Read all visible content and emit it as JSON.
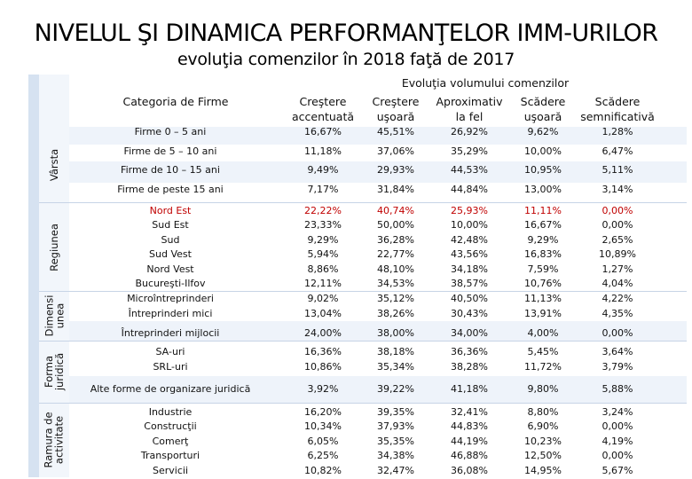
{
  "title": "NIVELUL ŞI DINAMICA PERFORMANŢELOR IMM-URILOR",
  "subtitle": "evoluţia comenzilor în 2018 faţă de 2017",
  "header": {
    "category_label": "Categoria de Firme",
    "group_label": "Evoluţia volumului comenzilor",
    "columns": [
      "Creştere\naccentuată",
      "Creştere\nuşoară",
      "Aproximativ\nla fel",
      "Scădere\nuşoară",
      "Scădere\nsemnificativă"
    ]
  },
  "groups": {
    "varsta": "Vârsta",
    "regiunea": "Regiunea",
    "dimensiunea": "Dimensi\nunea",
    "forma": "Forma\njuridică",
    "ramura": "Ramura de\nactivitate"
  },
  "rows": [
    {
      "label": "Firme 0 – 5 ani",
      "values": [
        "16,67%",
        "45,51%",
        "26,92%",
        "9,62%",
        "1,28%"
      ]
    },
    {
      "label": "Firme de 5 – 10 ani",
      "values": [
        "11,18%",
        "37,06%",
        "35,29%",
        "10,00%",
        "6,47%"
      ]
    },
    {
      "label": "Firme de 10 – 15 ani",
      "values": [
        "9,49%",
        "29,93%",
        "44,53%",
        "10,95%",
        "5,11%"
      ]
    },
    {
      "label": "Firme de peste 15 ani",
      "values": [
        "7,17%",
        "31,84%",
        "44,84%",
        "13,00%",
        "3,14%"
      ]
    },
    {
      "label": "Nord Est",
      "values": [
        "22,22%",
        "40,74%",
        "25,93%",
        "11,11%",
        "0,00%"
      ],
      "highlight": true
    },
    {
      "label": "Sud Est",
      "values": [
        "23,33%",
        "50,00%",
        "10,00%",
        "16,67%",
        "0,00%"
      ]
    },
    {
      "label": "Sud",
      "values": [
        "9,29%",
        "36,28%",
        "42,48%",
        "9,29%",
        "2,65%"
      ]
    },
    {
      "label": "Sud Vest",
      "values": [
        "5,94%",
        "22,77%",
        "43,56%",
        "16,83%",
        "10,89%"
      ]
    },
    {
      "label": "Nord Vest",
      "values": [
        "8,86%",
        "48,10%",
        "34,18%",
        "7,59%",
        "1,27%"
      ]
    },
    {
      "label": "Bucureşti-Ilfov",
      "values": [
        "12,11%",
        "34,53%",
        "38,57%",
        "10,76%",
        "4,04%"
      ]
    },
    {
      "label": "Microîntreprinderi",
      "values": [
        "9,02%",
        "35,12%",
        "40,50%",
        "11,13%",
        "4,22%"
      ]
    },
    {
      "label": "Întreprinderi mici",
      "values": [
        "13,04%",
        "38,26%",
        "30,43%",
        "13,91%",
        "4,35%"
      ]
    },
    {
      "label": "Întreprinderi mijlocii",
      "values": [
        "24,00%",
        "38,00%",
        "34,00%",
        "4,00%",
        "0,00%"
      ]
    },
    {
      "label": "SA-uri",
      "values": [
        "16,36%",
        "38,18%",
        "36,36%",
        "5,45%",
        "3,64%"
      ]
    },
    {
      "label": "SRL-uri",
      "values": [
        "10,86%",
        "35,34%",
        "38,28%",
        "11,72%",
        "3,79%"
      ]
    },
    {
      "label": "Alte forme de organizare juridică",
      "values": [
        "3,92%",
        "39,22%",
        "41,18%",
        "9,80%",
        "5,88%"
      ]
    },
    {
      "label": "Industrie",
      "values": [
        "16,20%",
        "39,35%",
        "32,41%",
        "8,80%",
        "3,24%"
      ]
    },
    {
      "label": "Construcţii",
      "values": [
        "10,34%",
        "37,93%",
        "44,83%",
        "6,90%",
        "0,00%"
      ]
    },
    {
      "label": "Comerţ",
      "values": [
        "6,05%",
        "35,35%",
        "44,19%",
        "10,23%",
        "4,19%"
      ]
    },
    {
      "label": "Transporturi",
      "values": [
        "6,25%",
        "34,38%",
        "46,88%",
        "12,50%",
        "0,00%"
      ]
    },
    {
      "label": "Servicii",
      "values": [
        "10,82%",
        "32,47%",
        "36,08%",
        "14,95%",
        "5,67%"
      ]
    }
  ]
}
